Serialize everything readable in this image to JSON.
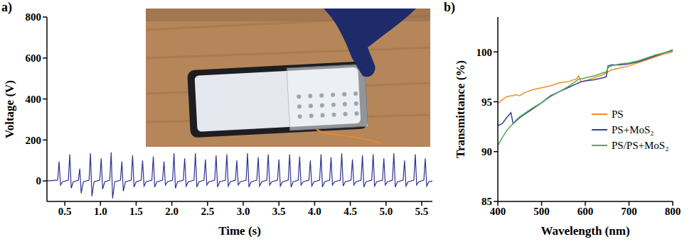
{
  "chart_data": [
    {
      "type": "line",
      "title": "a)",
      "x_label": "Time (s)",
      "y_label": "Voltage (V)",
      "color": "#2e3192",
      "x": [
        0.25,
        0.4,
        0.42,
        0.44,
        0.47,
        0.55,
        0.57,
        0.59,
        0.62,
        0.69,
        0.71,
        0.73,
        0.76,
        0.84,
        0.86,
        0.88,
        0.91,
        0.99,
        1.01,
        1.03,
        1.06,
        1.13,
        1.15,
        1.17,
        1.2,
        1.28,
        1.3,
        1.32,
        1.35,
        1.43,
        1.45,
        1.47,
        1.5,
        1.57,
        1.59,
        1.61,
        1.64,
        1.72,
        1.74,
        1.76,
        1.79,
        1.87,
        1.89,
        1.91,
        1.94,
        2.01,
        2.03,
        2.05,
        2.08,
        2.16,
        2.18,
        2.2,
        2.23,
        2.31,
        2.33,
        2.35,
        2.38,
        2.45,
        2.47,
        2.49,
        2.52,
        2.6,
        2.62,
        2.64,
        2.67,
        2.75,
        2.77,
        2.79,
        2.82,
        2.89,
        2.91,
        2.93,
        2.96,
        3.04,
        3.06,
        3.08,
        3.11,
        3.19,
        3.21,
        3.23,
        3.26,
        3.33,
        3.35,
        3.37,
        3.4,
        3.48,
        3.5,
        3.52,
        3.55,
        3.63,
        3.65,
        3.67,
        3.7,
        3.77,
        3.79,
        3.81,
        3.84,
        3.92,
        3.94,
        3.96,
        3.99,
        4.07,
        4.09,
        4.11,
        4.14,
        4.21,
        4.23,
        4.25,
        4.28,
        4.36,
        4.38,
        4.4,
        4.43,
        4.51,
        4.53,
        4.55,
        4.58,
        4.65,
        4.67,
        4.69,
        4.72,
        4.8,
        4.82,
        4.84,
        4.87,
        4.95,
        4.97,
        4.99,
        5.02,
        5.09,
        5.11,
        5.13,
        5.16,
        5.24,
        5.26,
        5.28,
        5.31,
        5.39,
        5.41,
        5.43,
        5.46,
        5.53,
        5.55,
        5.57,
        5.6,
        5.65
      ],
      "values": [
        0,
        4,
        95,
        -20,
        -4,
        4,
        130,
        -35,
        -4,
        4,
        60,
        -60,
        -4,
        4,
        135,
        -75,
        -4,
        4,
        110,
        -40,
        -4,
        4,
        140,
        -85,
        -4,
        4,
        95,
        -50,
        -4,
        4,
        125,
        -30,
        -4,
        4,
        100,
        -25,
        -4,
        4,
        120,
        -30,
        -4,
        4,
        95,
        -20,
        -4,
        4,
        135,
        -35,
        -4,
        4,
        110,
        -25,
        -4,
        4,
        135,
        -30,
        -4,
        4,
        105,
        -20,
        -4,
        4,
        125,
        -30,
        -4,
        4,
        130,
        -25,
        -4,
        4,
        100,
        -20,
        -4,
        4,
        135,
        -30,
        -4,
        4,
        115,
        -25,
        -4,
        4,
        130,
        -20,
        -4,
        4,
        105,
        -25,
        -4,
        4,
        130,
        -30,
        -4,
        4,
        120,
        -20,
        -4,
        4,
        100,
        -25,
        -4,
        4,
        130,
        -30,
        -4,
        4,
        115,
        -20,
        -4,
        4,
        135,
        -25,
        -4,
        4,
        105,
        -20,
        -4,
        4,
        125,
        -30,
        -4,
        4,
        130,
        -25,
        -4,
        4,
        110,
        -20,
        -4,
        4,
        135,
        -30,
        -4,
        4,
        100,
        -25,
        -4,
        4,
        130,
        -20,
        -4,
        4,
        110,
        -25,
        -4,
        0
      ],
      "xlim": [
        0.25,
        5.65
      ],
      "xticks": [
        0.5,
        {
          "value": 1,
          "label": "1.0"
        },
        1.5,
        {
          "value": 2,
          "label": "2.0"
        },
        2.5,
        {
          "value": 3,
          "label": "3.0"
        },
        3.5,
        {
          "value": 4,
          "label": "4.0"
        },
        4.5,
        {
          "value": 5,
          "label": "5.0"
        },
        5.5
      ],
      "ylim": [
        -100,
        800
      ],
      "yticks": [
        0,
        200,
        400,
        600,
        800
      ]
    },
    {
      "type": "line",
      "title": "b)",
      "x_label": "Wavelength (nm)",
      "y_label": "Transmittance (%)",
      "legend": "right",
      "x": [
        400,
        410,
        420,
        430,
        435,
        440,
        450,
        460,
        480,
        500,
        520,
        540,
        560,
        580,
        585,
        590,
        600,
        620,
        640,
        648,
        652,
        660,
        680,
        700,
        720,
        740,
        760,
        780,
        800
      ],
      "series": [
        {
          "name": "PS",
          "color": "#f28c28",
          "values": [
            94.8,
            95.2,
            95.5,
            95.6,
            95.6,
            95.7,
            95.6,
            95.9,
            96.2,
            96.4,
            96.6,
            96.9,
            97.0,
            97.3,
            97.6,
            97.0,
            97.1,
            97.4,
            97.7,
            97.9,
            98.0,
            98.2,
            98.4,
            98.6,
            98.9,
            99.2,
            99.5,
            99.8,
            100.0
          ]
        },
        {
          "name": "PS+MoS₂",
          "color": "#3a3f8f",
          "values": [
            92.6,
            92.8,
            93.4,
            93.9,
            92.8,
            93.0,
            93.4,
            93.7,
            94.3,
            94.9,
            95.6,
            96.0,
            96.4,
            96.8,
            96.9,
            97.0,
            97.1,
            97.2,
            97.4,
            97.5,
            98.6,
            98.7,
            98.7,
            98.8,
            99.0,
            99.3,
            99.6,
            99.9,
            100.2
          ]
        },
        {
          "name": "PS/PS+MoS₂",
          "color": "#4caf50",
          "values": [
            90.6,
            91.4,
            92.1,
            92.6,
            92.8,
            93.1,
            93.5,
            93.8,
            94.4,
            94.9,
            95.5,
            96.0,
            96.5,
            97.1,
            97.3,
            97.3,
            97.4,
            97.6,
            97.9,
            98.0,
            98.4,
            98.6,
            98.8,
            98.9,
            99.1,
            99.4,
            99.7,
            99.9,
            100.1
          ]
        }
      ],
      "xlim": [
        400,
        800
      ],
      "xticks": [
        400,
        500,
        600,
        700,
        800
      ],
      "ylim": [
        85,
        103.5
      ],
      "yticks": [
        85,
        90,
        95,
        100
      ]
    }
  ]
}
